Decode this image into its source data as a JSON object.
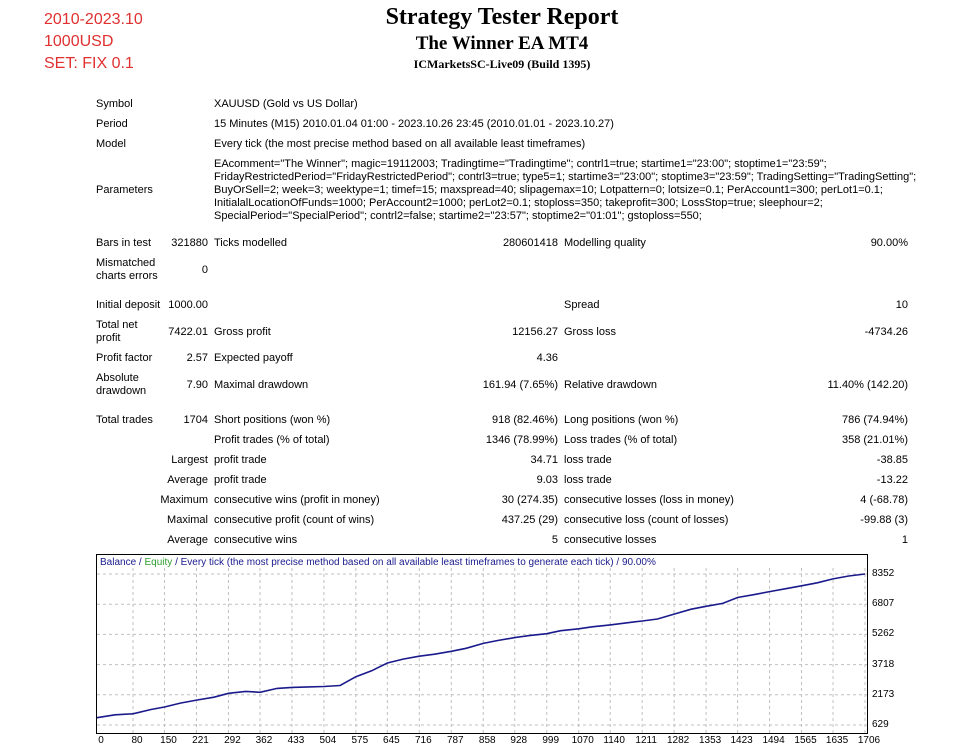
{
  "notes": {
    "range": "2010-2023.10",
    "deposit": "1000USD",
    "set": "SET: FIX 0.1"
  },
  "header": {
    "title": "Strategy Tester Report",
    "ea_name": "The Winner EA MT4",
    "server": "ICMarketsSC-Live09 (Build 1395)"
  },
  "info": {
    "symbol_label": "Symbol",
    "symbol_value": "XAUUSD (Gold vs US Dollar)",
    "period_label": "Period",
    "period_value": "15 Minutes (M15) 2010.01.04 01:00 - 2023.10.26 23:45 (2010.01.01 - 2023.10.27)",
    "model_label": "Model",
    "model_value": "Every tick (the most precise method based on all available least timeframes)",
    "parameters_label": "Parameters",
    "parameters_lines": [
      "EAcomment=\"The Winner\"; magic=19112003; Tradingtime=\"Tradingtime\"; contrl1=true; startime1=\"23:00\"; stoptime1=\"23:59\";",
      "FridayRestrictedPeriod=\"FridayRestrictedPeriod\"; contrl3=true; type5=1; startime3=\"23:00\"; stoptime3=\"23:59\"; TradingSetting=\"TradingSetting\";",
      "BuyOrSell=2; week=3; weektype=1; timef=15; maxspread=40; slipagemax=10; Lotpattern=0; lotsize=0.1; PerAccount1=300; perLot1=0.1;",
      "InitialalLocationOfFunds=1000; PerAccount2=1000; perLot2=0.1; stoploss=350; takeprofit=300; LossStop=true; sleephour=2;",
      "SpecialPeriod=\"SpecialPeriod\"; contrl2=false; startime2=\"23:57\"; stoptime2=\"01:01\"; gstoploss=550;"
    ]
  },
  "stats": {
    "bars_label": "Bars in test",
    "bars_value": "321880",
    "ticks_label": "Ticks modelled",
    "ticks_value": "280601418",
    "quality_label": "Modelling quality",
    "quality_value": "90.00%",
    "mismatched_label_1": "Mismatched",
    "mismatched_label_2": "charts errors",
    "mismatched_value": "0",
    "initial_label": "Initial deposit",
    "initial_value": "1000.00",
    "spread_label": "Spread",
    "spread_value": "10",
    "netprofit_label_1": "Total net",
    "netprofit_label_2": "profit",
    "netprofit_value": "7422.01",
    "grossprofit_label": "Gross profit",
    "grossprofit_value": "12156.27",
    "grossloss_label": "Gross loss",
    "grossloss_value": "-4734.26",
    "pf_label": "Profit factor",
    "pf_value": "2.57",
    "payoff_label": "Expected payoff",
    "payoff_value": "4.36",
    "absdd_label_1": "Absolute",
    "absdd_label_2": "drawdown",
    "absdd_value": "7.90",
    "maxdd_label": "Maximal drawdown",
    "maxdd_value": "161.94 (7.65%)",
    "reldd_label": "Relative drawdown",
    "reldd_value": "11.40% (142.20)",
    "trades_label": "Total trades",
    "trades_value": "1704",
    "short_label": "Short positions (won %)",
    "short_value": "918 (82.46%)",
    "long_label": "Long positions (won %)",
    "long_value": "786 (74.94%)",
    "ptrades_label": "Profit trades (% of total)",
    "ptrades_value": "1346 (78.99%)",
    "ltrades_label": "Loss trades (% of total)",
    "ltrades_value": "358 (21.01%)",
    "largest_label": "Largest",
    "largest_profit_label": "profit trade",
    "largest_profit_value": "34.71",
    "largest_loss_label": "loss trade",
    "largest_loss_value": "-38.85",
    "average_label": "Average",
    "average_profit_label": "profit trade",
    "average_profit_value": "9.03",
    "average_loss_label": "loss trade",
    "average_loss_value": "-13.22",
    "maximum_label": "Maximum",
    "max_wins_label": "consecutive wins (profit in money)",
    "max_wins_value": "30 (274.35)",
    "max_losses_label": "consecutive losses (loss in money)",
    "max_losses_value": "4 (-68.78)",
    "maximal_label": "Maximal",
    "maximal_profit_label": "consecutive profit (count of wins)",
    "maximal_profit_value": "437.25 (29)",
    "maximal_loss_label": "consecutive loss (count of losses)",
    "maximal_loss_value": "-99.88 (3)",
    "avgcons_label": "Average",
    "avgcons_wins_label": "consecutive wins",
    "avgcons_wins_value": "5",
    "avgcons_losses_label": "consecutive losses",
    "avgcons_losses_value": "1"
  },
  "chart_legend": {
    "balance": "Balance",
    "sep": "/",
    "equity": "Equity",
    "rest": "/ Every tick (the most precise method based on all available least timeframes to generate each tick) / 90.00%"
  },
  "colors": {
    "note": "#e03030",
    "balance": "#1a1a8c",
    "equity": "#2e9e2e",
    "legend_text": "#1a1a8c"
  },
  "chart_data": {
    "type": "line",
    "x_ticks": [
      "0",
      "80",
      "150",
      "221",
      "292",
      "362",
      "433",
      "504",
      "575",
      "645",
      "716",
      "787",
      "858",
      "928",
      "999",
      "1070",
      "1140",
      "1211",
      "1282",
      "1353",
      "1423",
      "1494",
      "1565",
      "1635",
      "1706"
    ],
    "y_ticks": [
      "8352",
      "6807",
      "5262",
      "3718",
      "2173",
      "629"
    ],
    "xlim": [
      0,
      1706
    ],
    "ylim": [
      629,
      8352
    ],
    "series": [
      {
        "name": "Balance",
        "x": [
          0,
          40,
          80,
          120,
          150,
          185,
          221,
          260,
          292,
          330,
          362,
          400,
          433,
          470,
          504,
          540,
          575,
          610,
          645,
          680,
          716,
          750,
          787,
          820,
          858,
          890,
          928,
          960,
          999,
          1030,
          1070,
          1100,
          1140,
          1175,
          1211,
          1245,
          1282,
          1320,
          1353,
          1390,
          1423,
          1460,
          1494,
          1530,
          1565,
          1600,
          1635,
          1670,
          1706
        ],
        "y": [
          1000,
          1150,
          1200,
          1420,
          1550,
          1750,
          1900,
          2050,
          2250,
          2350,
          2300,
          2500,
          2550,
          2580,
          2600,
          2650,
          3100,
          3400,
          3800,
          4000,
          4150,
          4250,
          4400,
          4550,
          4800,
          4950,
          5100,
          5200,
          5300,
          5450,
          5550,
          5650,
          5750,
          5850,
          5950,
          6050,
          6300,
          6550,
          6700,
          6850,
          7150,
          7300,
          7450,
          7600,
          7750,
          7900,
          8100,
          8250,
          8352
        ]
      }
    ]
  }
}
